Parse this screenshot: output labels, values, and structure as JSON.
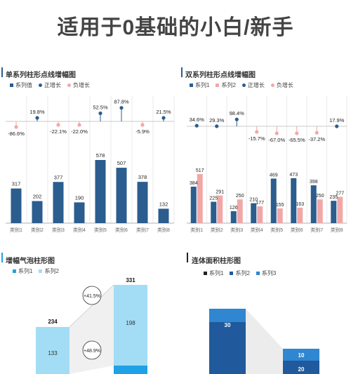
{
  "title": "适用于0基础的小白/新手",
  "colors": {
    "navy": "#2b5d8e",
    "pink": "#f2a7a7",
    "light_blue": "#a3dcf5",
    "bright_blue": "#1ea1e6",
    "dark_blue": "#205a9c",
    "mid_blue": "#2f86d1",
    "black": "#222222",
    "grid": "#dddddd"
  },
  "panels": {
    "p1": {
      "title": "单系列柱形点线增幅图",
      "legend": [
        {
          "label": "系列值",
          "color": "#2b5d8e",
          "shape": "square"
        },
        {
          "label": "正增长",
          "color": "#2b5d8e",
          "shape": "circle"
        },
        {
          "label": "负增长",
          "color": "#f2a7a7",
          "shape": "circle"
        }
      ]
    },
    "p2": {
      "title": "双系列柱形点线增幅图",
      "legend": [
        {
          "label": "系列1",
          "color": "#2b5d8e",
          "shape": "square"
        },
        {
          "label": "系列2",
          "color": "#f2a7a7",
          "shape": "square"
        },
        {
          "label": "正增长",
          "color": "#2b5d8e",
          "shape": "circle"
        },
        {
          "label": "负增长",
          "color": "#f2a7a7",
          "shape": "circle"
        }
      ]
    },
    "p3": {
      "title": "增幅气泡柱形图",
      "legend": [
        {
          "label": "系列1",
          "color": "#1ea1e6",
          "shape": "square"
        },
        {
          "label": "系列2",
          "color": "#a3dcf5",
          "shape": "square"
        }
      ]
    },
    "p4": {
      "title": "连体面积柱形图",
      "legend": [
        {
          "label": "系列1",
          "color": "#222222",
          "shape": "square"
        },
        {
          "label": "系列2",
          "color": "#205a9c",
          "shape": "square"
        },
        {
          "label": "系列3",
          "color": "#2f86d1",
          "shape": "square"
        }
      ]
    }
  },
  "chart_data": [
    {
      "type": "bar",
      "title": "单系列柱形点线增幅图",
      "categories": [
        "类别1",
        "类别2",
        "类别3",
        "类别4",
        "类别5",
        "类别6",
        "类别7",
        "类别8"
      ],
      "series": [
        {
          "name": "系列值",
          "values": [
            317,
            202,
            377,
            190,
            578,
            507,
            378,
            132
          ]
        }
      ],
      "growth_labels": [
        "-86.6%",
        "19.8%",
        "-22.1%",
        "-22.0%",
        "52.5%",
        "87.8%",
        "-5.9%",
        "21.5%"
      ],
      "growth_values": [
        -86.6,
        19.8,
        -22.1,
        -22.0,
        52.5,
        87.8,
        -5.9,
        21.5
      ]
    },
    {
      "type": "bar",
      "title": "双系列柱形点线增幅图",
      "categories": [
        "类别1",
        "类别2",
        "类别3",
        "类别4",
        "类别5",
        "类别6",
        "类别7",
        "类别8"
      ],
      "series": [
        {
          "name": "系列1",
          "values": [
            384,
            225,
            126,
            210,
            469,
            473,
            398,
            235
          ]
        },
        {
          "name": "系列2",
          "values": [
            517,
            291,
            250,
            177,
            155,
            163,
            250,
            277
          ]
        }
      ],
      "growth_labels": [
        "34.6%",
        "29.3%",
        "98.4%",
        "-15.7%",
        "-67.0%",
        "-65.5%",
        "-37.2%",
        "17.9%"
      ],
      "growth_values": [
        34.6,
        29.3,
        98.4,
        -15.7,
        -67.0,
        -65.5,
        -37.2,
        17.9
      ]
    },
    {
      "type": "bar",
      "title": "增幅气泡柱形图",
      "totals": [
        "234",
        "331"
      ],
      "segment_labels": [
        "133",
        "198"
      ],
      "bubble_labels": [
        "+41.5%",
        "+48.9%"
      ]
    },
    {
      "type": "bar",
      "title": "连体面积柱形图",
      "segment_labels": [
        "30",
        "10",
        "20"
      ]
    }
  ]
}
